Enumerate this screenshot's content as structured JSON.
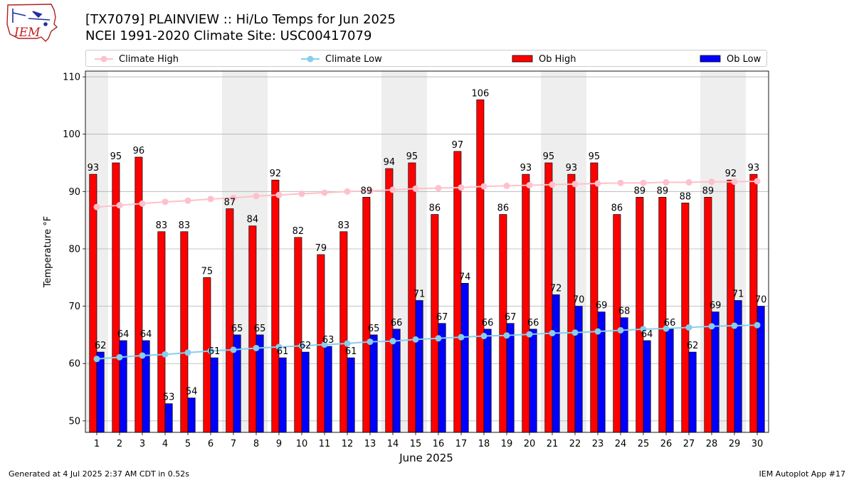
{
  "header": {
    "logo_text": "IEM",
    "title_line1": "[TX7079] PLAINVIEW :: Hi/Lo Temps for Jun 2025",
    "title_line2": "NCEI 1991-2020 Climate Site: USC00417079"
  },
  "legend": {
    "items": [
      {
        "label": "Climate High",
        "color": "#ffc0cb",
        "kind": "line-marker"
      },
      {
        "label": "Climate Low",
        "color": "#87ceeb",
        "kind": "line-marker"
      },
      {
        "label": "Ob High",
        "color": "#ff0000",
        "kind": "box"
      },
      {
        "label": "Ob Low",
        "color": "#0000ff",
        "kind": "box"
      }
    ]
  },
  "footer": {
    "generated": "Generated at 4 Jul 2025 2:37 AM CDT in 0.52s",
    "app": "IEM Autoplot App #17"
  },
  "chart_data": {
    "type": "bar",
    "xlabel": "June 2025",
    "ylabel": "Temperature °F",
    "ylim": [
      48,
      111
    ],
    "yticks": [
      50,
      60,
      70,
      80,
      90,
      100,
      110
    ],
    "grid": true,
    "legend_position": "top",
    "shaded_weekend_days": [
      1,
      7,
      8,
      14,
      15,
      21,
      22,
      28,
      29
    ],
    "categories": [
      "1",
      "2",
      "3",
      "4",
      "5",
      "6",
      "7",
      "8",
      "9",
      "10",
      "11",
      "12",
      "13",
      "14",
      "15",
      "16",
      "17",
      "18",
      "19",
      "20",
      "21",
      "22",
      "23",
      "24",
      "25",
      "26",
      "27",
      "28",
      "29",
      "30"
    ],
    "series": [
      {
        "name": "Ob High",
        "type": "bar",
        "color": "#ff0000",
        "values": [
          93,
          95,
          96,
          83,
          83,
          75,
          87,
          84,
          92,
          82,
          79,
          83,
          89,
          94,
          95,
          86,
          97,
          106,
          86,
          93,
          95,
          93,
          95,
          86,
          89,
          89,
          88,
          89,
          92,
          93
        ]
      },
      {
        "name": "Ob Low",
        "type": "bar",
        "color": "#0000ff",
        "values": [
          62,
          64,
          64,
          53,
          54,
          61,
          65,
          65,
          61,
          62,
          63,
          61,
          65,
          66,
          71,
          67,
          74,
          66,
          67,
          66,
          72,
          70,
          69,
          68,
          64,
          66,
          62,
          69,
          71,
          70
        ]
      },
      {
        "name": "Climate High",
        "type": "line",
        "color": "#ffc0cb",
        "values": [
          87.3,
          87.6,
          87.9,
          88.2,
          88.4,
          88.7,
          88.9,
          89.2,
          89.4,
          89.6,
          89.8,
          90.0,
          90.1,
          90.3,
          90.5,
          90.6,
          90.7,
          90.9,
          91.0,
          91.1,
          91.2,
          91.3,
          91.4,
          91.5,
          91.5,
          91.6,
          91.6,
          91.7,
          91.7,
          91.8
        ]
      },
      {
        "name": "Climate Low",
        "type": "line",
        "color": "#87ceeb",
        "values": [
          60.8,
          61.1,
          61.4,
          61.6,
          61.9,
          62.2,
          62.4,
          62.7,
          62.9,
          63.1,
          63.3,
          63.5,
          63.8,
          63.9,
          64.2,
          64.4,
          64.6,
          64.8,
          64.9,
          65.1,
          65.3,
          65.4,
          65.6,
          65.8,
          66.0,
          66.1,
          66.3,
          66.5,
          66.6,
          66.7
        ]
      }
    ]
  }
}
